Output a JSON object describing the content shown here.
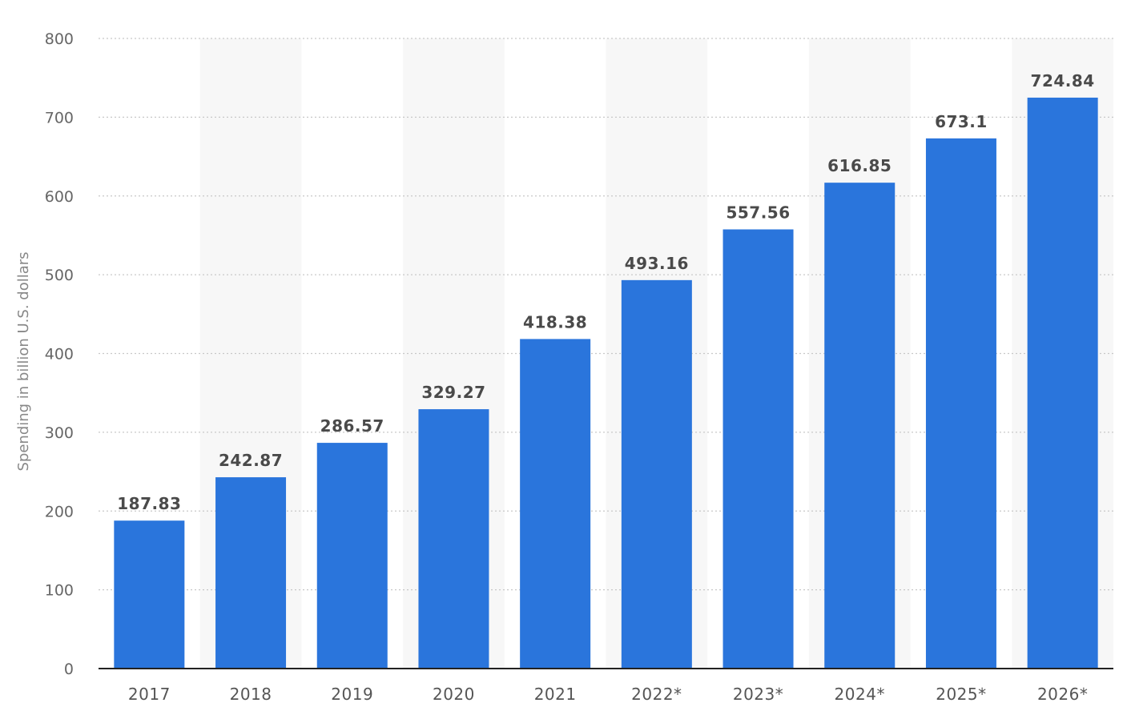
{
  "chart_data": {
    "type": "bar",
    "categories": [
      "2017",
      "2018",
      "2019",
      "2020",
      "2021",
      "2022*",
      "2023*",
      "2024*",
      "2025*",
      "2026*"
    ],
    "values": [
      187.83,
      242.87,
      286.57,
      329.27,
      418.38,
      493.16,
      557.56,
      616.85,
      673.1,
      724.84
    ],
    "value_labels": [
      "187.83",
      "242.87",
      "286.57",
      "329.27",
      "418.38",
      "493.16",
      "557.56",
      "616.85",
      "673.1",
      "724.84"
    ],
    "title": "",
    "xlabel": "",
    "ylabel": "Spending in billion U.S. dollars",
    "ylim": [
      0,
      800
    ],
    "yticks": [
      0,
      100,
      200,
      300,
      400,
      500,
      600,
      700,
      800
    ],
    "ytick_labels": [
      "0",
      "100",
      "200",
      "300",
      "400",
      "500",
      "600",
      "700",
      "800"
    ],
    "grid": true,
    "legend": "none",
    "bar_color": "#2a75dc",
    "band_color": "#f7f7f7",
    "grid_color": "#c8c8c8"
  }
}
